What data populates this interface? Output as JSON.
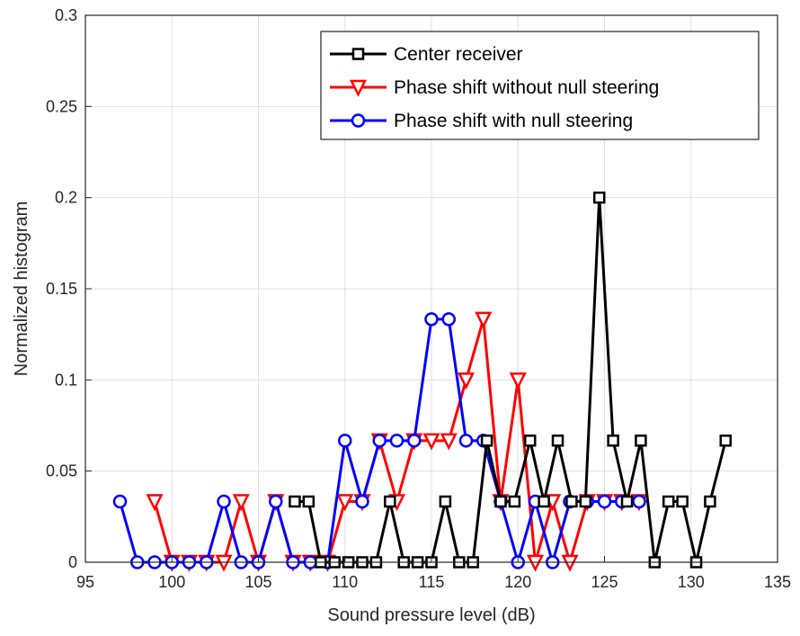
{
  "chart_data": {
    "type": "line",
    "title": "",
    "xlabel": "Sound pressure level (dB)",
    "ylabel": "Normalized histogram",
    "xlim": [
      95,
      135
    ],
    "ylim": [
      0,
      0.3
    ],
    "x_ticks": [
      95,
      100,
      105,
      110,
      115,
      120,
      125,
      130,
      135
    ],
    "x_tick_labels": [
      "95",
      "100",
      "105",
      "110",
      "115",
      "120",
      "125",
      "130",
      "135"
    ],
    "y_ticks": [
      0,
      0.05,
      0.1,
      0.15,
      0.2,
      0.25,
      0.3
    ],
    "y_tick_labels": [
      "0",
      "0.05",
      "0.1",
      "0.15",
      "0.2",
      "0.25",
      "0.3"
    ],
    "grid": true,
    "legend_position": "top-right",
    "series": [
      {
        "name": "Center receiver",
        "color": "#000000",
        "marker": "square",
        "x": [
          107.1,
          107.9,
          108.6,
          109.4,
          110.2,
          111.0,
          111.8,
          112.6,
          113.4,
          114.2,
          115.0,
          115.8,
          116.6,
          117.4,
          118.2,
          119.0,
          119.8,
          120.7,
          121.5,
          122.3,
          123.1,
          123.9,
          124.7,
          125.5,
          126.3,
          127.1,
          127.9,
          128.7,
          129.5,
          130.3,
          131.1,
          132.0
        ],
        "y": [
          0.0333,
          0.0333,
          0,
          0,
          0,
          0,
          0,
          0.0333,
          0,
          0,
          0,
          0.0333,
          0,
          0,
          0.0667,
          0.0333,
          0.0333,
          0.0667,
          0.0333,
          0.0667,
          0.0333,
          0.0333,
          0.2,
          0.0667,
          0.0333,
          0.0667,
          0,
          0.0333,
          0.0333,
          0,
          0.0333,
          0.0667
        ]
      },
      {
        "name": "Phase shift without null steering",
        "color": "#ff0000",
        "marker": "triangle-down",
        "x": [
          99.0,
          100.0,
          101.0,
          102.0,
          103.0,
          104.0,
          105.0,
          106.0,
          107.0,
          108.0,
          109.0,
          110.0,
          111.0,
          112.0,
          113.0,
          114.0,
          115.0,
          116.0,
          117.0,
          118.0,
          119.0,
          120.0,
          121.0,
          122.0,
          123.0,
          124.0,
          125.0,
          126.0,
          127.0
        ],
        "y": [
          0.0333,
          0,
          0,
          0,
          0,
          0.0333,
          0,
          0.0333,
          0,
          0,
          0,
          0.0333,
          0.0333,
          0.0667,
          0.0333,
          0.0667,
          0.0667,
          0.0667,
          0.1,
          0.1333,
          0.0333,
          0.1,
          0,
          0.0333,
          0,
          0.0333,
          0.0333,
          0.0333,
          0.0333
        ]
      },
      {
        "name": "Phase shift with null steering",
        "color": "#0000ff",
        "marker": "circle",
        "x": [
          97.0,
          98.0,
          99.0,
          100.0,
          101.0,
          102.0,
          103.0,
          104.0,
          105.0,
          106.0,
          107.0,
          108.0,
          109.0,
          110.0,
          111.0,
          112.0,
          113.0,
          114.0,
          115.0,
          116.0,
          117.0,
          118.0,
          119.0,
          120.0,
          121.0,
          122.0,
          123.0,
          124.0,
          125.0,
          126.0,
          127.0
        ],
        "y": [
          0.0333,
          0,
          0,
          0,
          0,
          0,
          0.0333,
          0,
          0,
          0.0333,
          0,
          0,
          0,
          0.0667,
          0.0333,
          0.0667,
          0.0667,
          0.0667,
          0.1333,
          0.1333,
          0.0667,
          0.0667,
          0.0333,
          0,
          0.0333,
          0,
          0.0333,
          0.0333,
          0.0333,
          0.0333,
          0.0333
        ]
      }
    ]
  }
}
